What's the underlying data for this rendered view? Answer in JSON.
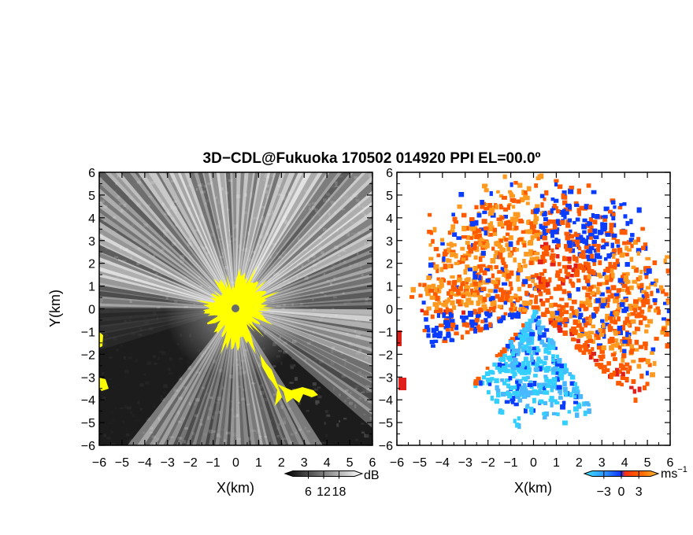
{
  "title": "3D−CDL@Fukuoka 170502 014920 PPI EL=00.0º",
  "chart_data": [
    {
      "type": "heatmap",
      "panel": "left",
      "quantity": "reflectivity (grayscale)",
      "xlabel": "X(km)",
      "ylabel": "Y(km)",
      "xlim": [
        -6,
        6
      ],
      "ylim": [
        -6,
        6
      ],
      "ticks": [
        -6,
        -5,
        -4,
        -3,
        -2,
        -1,
        0,
        1,
        2,
        3,
        4,
        5,
        6
      ],
      "tick_labels": [
        "−6",
        "−5",
        "−4",
        "−3",
        "−2",
        "−1",
        "0",
        "1",
        "2",
        "3",
        "4",
        "5",
        "6"
      ],
      "colorbar": {
        "unit": "dB",
        "tick_labels": [
          "6",
          "12",
          "18"
        ],
        "range": [
          0,
          24
        ],
        "ticks": [
          6,
          12,
          18
        ]
      },
      "colors": {
        "background": "#1c1c1c",
        "near_field": "#ffff00",
        "beam": "#ffffff"
      }
    },
    {
      "type": "heatmap",
      "panel": "right",
      "quantity": "Doppler velocity",
      "xlabel": "X(km)",
      "ylabel": "",
      "xlim": [
        -6,
        6
      ],
      "ylim": [
        -6,
        6
      ],
      "ticks": [
        -6,
        -5,
        -4,
        -3,
        -2,
        -1,
        0,
        1,
        2,
        3,
        4,
        5,
        6
      ],
      "tick_labels": [
        "−6",
        "−5",
        "−4",
        "−3",
        "−2",
        "−1",
        "0",
        "1",
        "2",
        "3",
        "4",
        "5",
        "6"
      ],
      "colorbar": {
        "unit": "ms",
        "unit_exp": "−1",
        "tick_labels": [
          "−3",
          "0",
          "3"
        ],
        "range": [
          -5,
          5
        ],
        "ticks": [
          -3,
          0,
          3
        ]
      },
      "colors": {
        "toward": "#0a3cff",
        "cyan": "#33d0ff",
        "away": "#ff5a00",
        "far": "#ff9a20",
        "red": "#e0201a"
      }
    }
  ]
}
